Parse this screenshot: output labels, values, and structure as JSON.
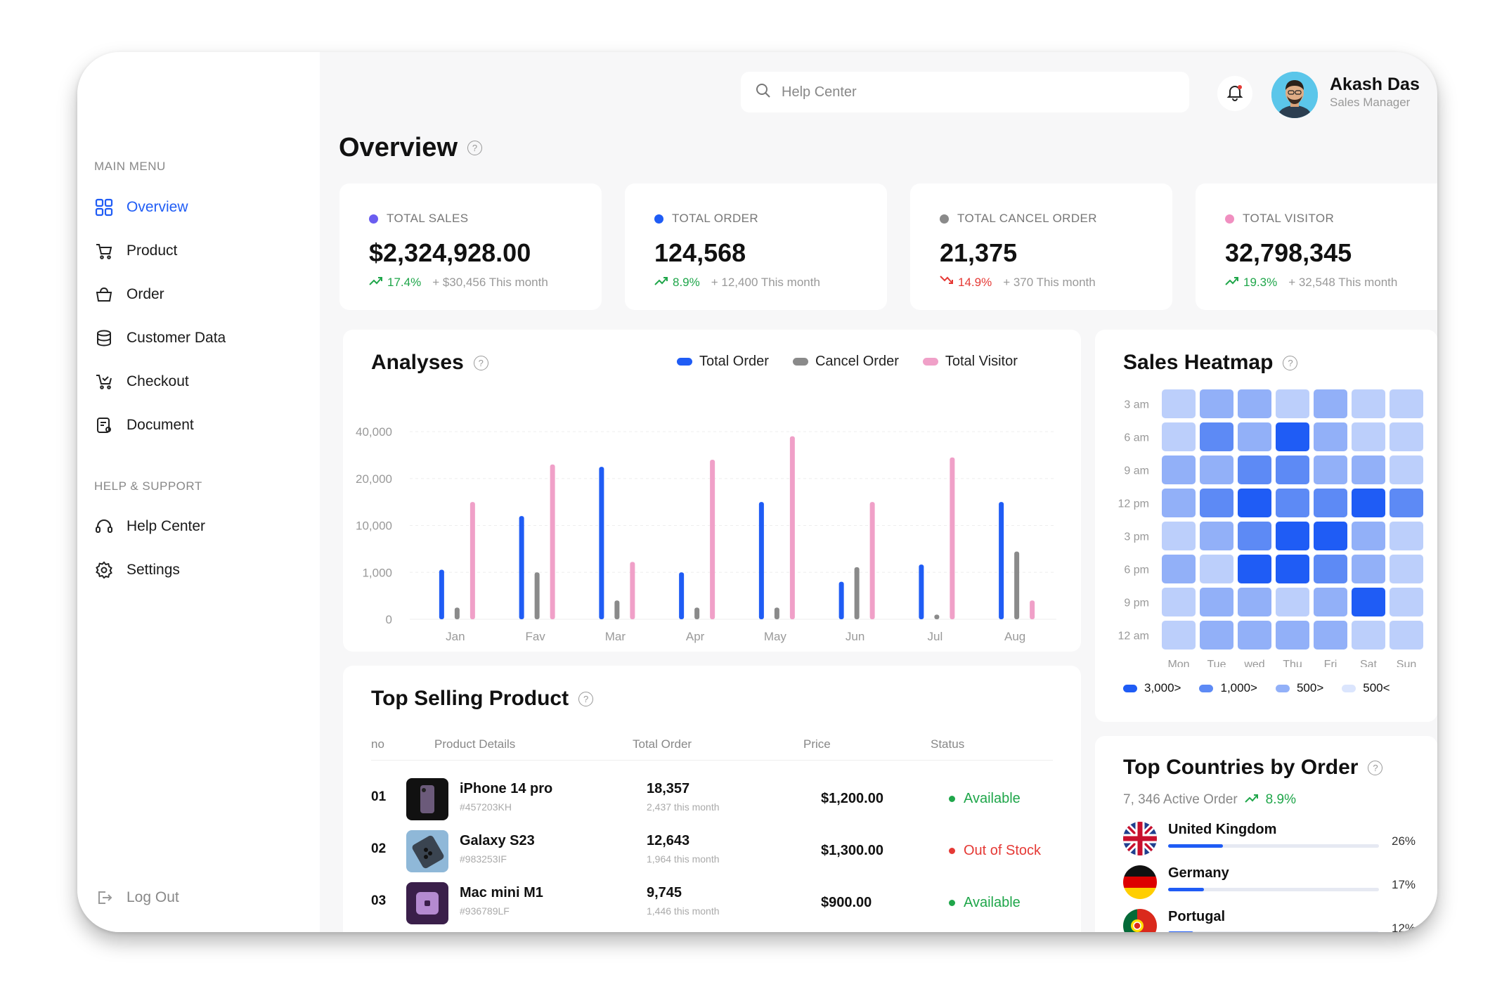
{
  "sidebar": {
    "main_menu_label": "MAIN MENU",
    "items": [
      {
        "label": "Overview",
        "icon": "grid-icon"
      },
      {
        "label": "Product",
        "icon": "cart-icon"
      },
      {
        "label": "Order",
        "icon": "basket-icon"
      },
      {
        "label": "Customer Data",
        "icon": "database-icon"
      },
      {
        "label": "Checkout",
        "icon": "checkout-cart-icon"
      },
      {
        "label": "Document",
        "icon": "document-icon"
      }
    ],
    "help_label": "HELP & SUPPORT",
    "help_items": [
      {
        "label": "Help Center",
        "icon": "headset-icon"
      },
      {
        "label": "Settings",
        "icon": "gear-icon"
      }
    ],
    "logout_label": "Log Out"
  },
  "header": {
    "search_placeholder": "Help Center",
    "user_name": "Akash Das",
    "user_role": "Sales Manager"
  },
  "page_title": "Overview",
  "stats": [
    {
      "label": "TOTAL SALES",
      "value": "$2,324,928.00",
      "pct": "17.4%",
      "extra": "+ $30,456 This month",
      "trend": "up",
      "dot_color": "#6a5df0"
    },
    {
      "label": "TOTAL ORDER",
      "value": "124,568",
      "pct": "8.9%",
      "extra": "+ 12,400 This month",
      "trend": "up",
      "dot_color": "#1f5cf5"
    },
    {
      "label": "TOTAL CANCEL ORDER",
      "value": "21,375",
      "pct": "14.9%",
      "extra": "+ 370 This month",
      "trend": "down",
      "dot_color": "#8a8a8a"
    },
    {
      "label": "TOTAL VISITOR",
      "value": "32,798,345",
      "pct": "19.3%",
      "extra": "+ 32,548 This month",
      "trend": "up",
      "dot_color": "#f08fc0"
    }
  ],
  "analyses": {
    "title": "Analyses",
    "legend": [
      {
        "name": "Total Order",
        "color": "#1f5cf5"
      },
      {
        "name": "Cancel Order",
        "color": "#8a8a8a"
      },
      {
        "name": "Total Visitor",
        "color": "#f0a0c8"
      }
    ]
  },
  "chart_data": {
    "type": "bar",
    "title": "Analyses",
    "y_tick_labels": [
      "40,000",
      "20,000",
      "10,000",
      "1,000",
      "0"
    ],
    "categories": [
      "Jan",
      "Fav",
      "Mar",
      "Apr",
      "May",
      "Jun",
      "Jul",
      "Aug"
    ],
    "y_scale": "nonlinear (ticks 0, 1,000, 10,000, 20,000, 40,000 evenly spaced)",
    "series": [
      {
        "name": "Total Order",
        "values": [
          1500,
          12000,
          25000,
          1000,
          15000,
          800,
          2500,
          15000
        ]
      },
      {
        "name": "Cancel Order",
        "values": [
          250,
          1000,
          400,
          250,
          250,
          2000,
          100,
          5000
        ]
      },
      {
        "name": "Total Visitor",
        "values": [
          15000,
          26000,
          3000,
          28000,
          38000,
          15000,
          29000,
          400
        ]
      }
    ],
    "grid": true,
    "legend_position": "top-right"
  },
  "heatmap": {
    "title": "Sales Heatmap",
    "rows": [
      "3 am",
      "6 am",
      "9 am",
      "12 pm",
      "3 pm",
      "6 pm",
      "9 pm",
      "12 am"
    ],
    "cols": [
      "Mon",
      "Tue",
      "wed",
      "Thu",
      "Fri",
      "Sat",
      "Sun"
    ],
    "levels": [
      [
        1,
        2,
        2,
        1,
        2,
        1,
        1
      ],
      [
        1,
        3,
        2,
        4,
        2,
        1,
        1
      ],
      [
        2,
        2,
        3,
        3,
        2,
        2,
        1
      ],
      [
        2,
        3,
        4,
        3,
        3,
        4,
        3
      ],
      [
        1,
        2,
        3,
        4,
        4,
        2,
        1
      ],
      [
        2,
        1,
        4,
        4,
        3,
        2,
        1
      ],
      [
        1,
        2,
        2,
        1,
        2,
        4,
        1
      ],
      [
        1,
        2,
        2,
        2,
        2,
        1,
        1
      ]
    ],
    "level_colors": [
      "#dbe5fd",
      "#bccffb",
      "#92b0f8",
      "#5d8af5",
      "#1f5cf5"
    ],
    "legend": [
      {
        "label": "3,000>",
        "color": "#1f5cf5"
      },
      {
        "label": "1,000>",
        "color": "#5d8af5"
      },
      {
        "label": "500>",
        "color": "#92b0f8"
      },
      {
        "label": "500<",
        "color": "#dbe5fd"
      }
    ]
  },
  "top_selling": {
    "title": "Top Selling Product",
    "headers": [
      "no",
      "Product Details",
      "Total Order",
      "Price",
      "Status"
    ],
    "rows": [
      {
        "no": "01",
        "name": "iPhone 14 pro",
        "id": "#457203KH",
        "orders": "18,357",
        "orders_sub": "2,437 this month",
        "price": "$1,200.00",
        "status": "Available",
        "status_color": "#1fa64a",
        "thumb": "phone-thumb"
      },
      {
        "no": "02",
        "name": "Galaxy S23",
        "id": "#983253IF",
        "orders": "12,643",
        "orders_sub": "1,964 this month",
        "price": "$1,300.00",
        "status": "Out of Stock",
        "status_color": "#e53935",
        "thumb": "galaxy-thumb"
      },
      {
        "no": "03",
        "name": "Mac mini M1",
        "id": "#936789LF",
        "orders": "9,745",
        "orders_sub": "1,446 this month",
        "price": "$900.00",
        "status": "Available",
        "status_color": "#1fa64a",
        "thumb": "mac-thumb"
      }
    ]
  },
  "countries": {
    "title": "Top Countries by Order",
    "active_orders": "7, 346 Active Order",
    "pct": "8.9%",
    "rows": [
      {
        "name": "United Kingdom",
        "pct": "26%",
        "share": 0.26
      },
      {
        "name": "Germany",
        "pct": "17%",
        "share": 0.17
      },
      {
        "name": "Portugal",
        "pct": "12%",
        "share": 0.12
      }
    ]
  }
}
